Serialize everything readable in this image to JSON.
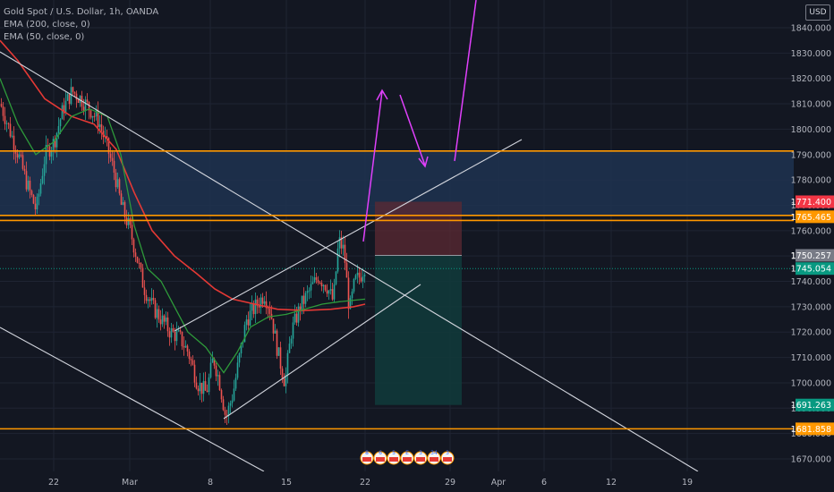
{
  "legend": {
    "symbol": "Gold Spot / U.S. Dollar, 1h, OANDA",
    "ema200": "EMA (200, close, 0)",
    "ema50": "EMA (50, close, 0)"
  },
  "currency": "USD",
  "chart_data": {
    "type": "candlestick",
    "y_ticks": [
      1670,
      1680,
      1690,
      1700,
      1710,
      1720,
      1730,
      1740,
      1750,
      1760,
      1770,
      1780,
      1790,
      1800,
      1810,
      1820,
      1830,
      1840
    ],
    "y_tick_labels": [
      "1670.000",
      "1680.000",
      "1690.000",
      "1700.000",
      "1710.000",
      "1720.000",
      "1730.000",
      "1740.000",
      "1750.000",
      "1760.000",
      "1770.000",
      "1780.000",
      "1790.000",
      "1800.000",
      "1810.000",
      "1820.000",
      "1830.000",
      "1840.000"
    ],
    "ylim": [
      1665,
      1853
    ],
    "x_labels": [
      "22",
      "Mar",
      "8",
      "15",
      "22",
      "29",
      "Apr",
      "6",
      "12",
      "19"
    ],
    "price_tags": [
      {
        "label": "1771.400",
        "value": 1771.4,
        "color": "#f23645"
      },
      {
        "label": "1765.465",
        "value": 1765.465,
        "color": "#ff9800"
      },
      {
        "label": "1750.257",
        "value": 1750.257,
        "color": "#787b86"
      },
      {
        "label": "1745.054",
        "value": 1745.054,
        "color": "#089981"
      },
      {
        "label": "1691.263",
        "value": 1691.263,
        "color": "#089981"
      },
      {
        "label": "1681.858",
        "value": 1681.858,
        "color": "#ff9800"
      }
    ],
    "horizontal_levels": [
      1791.4,
      1766.0,
      1764.0,
      1681.858
    ],
    "zone": [
      1766.0,
      1791.4
    ],
    "position": {
      "entry": 1750.257,
      "stop": 1771.4,
      "target": 1691.263
    },
    "ema200": [
      [
        0,
        1835
      ],
      [
        20,
        1827
      ],
      [
        50,
        1812
      ],
      [
        80,
        1805
      ],
      [
        105,
        1802
      ],
      [
        130,
        1792
      ],
      [
        150,
        1775
      ],
      [
        170,
        1760
      ],
      [
        195,
        1750
      ],
      [
        220,
        1743
      ],
      [
        240,
        1737
      ],
      [
        260,
        1733
      ],
      [
        285,
        1731
      ],
      [
        310,
        1729
      ],
      [
        340,
        1728.5
      ],
      [
        370,
        1729
      ],
      [
        395,
        1730
      ],
      [
        408,
        1731
      ]
    ],
    "ema50": [
      [
        0,
        1820
      ],
      [
        20,
        1802
      ],
      [
        40,
        1790
      ],
      [
        60,
        1795
      ],
      [
        80,
        1805
      ],
      [
        100,
        1808
      ],
      [
        120,
        1805
      ],
      [
        135,
        1790
      ],
      [
        150,
        1762
      ],
      [
        165,
        1745
      ],
      [
        180,
        1740
      ],
      [
        195,
        1730
      ],
      [
        210,
        1720
      ],
      [
        230,
        1714
      ],
      [
        250,
        1704
      ],
      [
        265,
        1712
      ],
      [
        280,
        1722
      ],
      [
        300,
        1726
      ],
      [
        320,
        1727
      ],
      [
        340,
        1729
      ],
      [
        360,
        1731
      ],
      [
        380,
        1732
      ],
      [
        408,
        1733
      ]
    ],
    "price_path": [
      [
        0,
        1810
      ],
      [
        10,
        1800
      ],
      [
        20,
        1790
      ],
      [
        30,
        1778
      ],
      [
        40,
        1768
      ],
      [
        50,
        1790
      ],
      [
        60,
        1795
      ],
      [
        70,
        1808
      ],
      [
        80,
        1815
      ],
      [
        90,
        1812
      ],
      [
        100,
        1808
      ],
      [
        110,
        1803
      ],
      [
        120,
        1792
      ],
      [
        128,
        1782
      ],
      [
        135,
        1770
      ],
      [
        145,
        1760
      ],
      [
        152,
        1750
      ],
      [
        160,
        1738
      ],
      [
        170,
        1730
      ],
      [
        180,
        1725
      ],
      [
        190,
        1720
      ],
      [
        200,
        1718
      ],
      [
        210,
        1712
      ],
      [
        220,
        1700
      ],
      [
        230,
        1696
      ],
      [
        238,
        1710
      ],
      [
        245,
        1700
      ],
      [
        252,
        1686
      ],
      [
        260,
        1696
      ],
      [
        268,
        1712
      ],
      [
        275,
        1725
      ],
      [
        285,
        1730
      ],
      [
        295,
        1735
      ],
      [
        302,
        1728
      ],
      [
        310,
        1712
      ],
      [
        318,
        1700
      ],
      [
        325,
        1720
      ],
      [
        335,
        1730
      ],
      [
        345,
        1736
      ],
      [
        355,
        1742
      ],
      [
        365,
        1738
      ],
      [
        372,
        1732
      ],
      [
        378,
        1756
      ],
      [
        384,
        1752
      ],
      [
        390,
        1728
      ],
      [
        396,
        1740
      ],
      [
        402,
        1742
      ],
      [
        408,
        1747
      ]
    ]
  },
  "badges": [
    "8",
    "6",
    "5",
    "E",
    "3",
    "34",
    "3"
  ]
}
